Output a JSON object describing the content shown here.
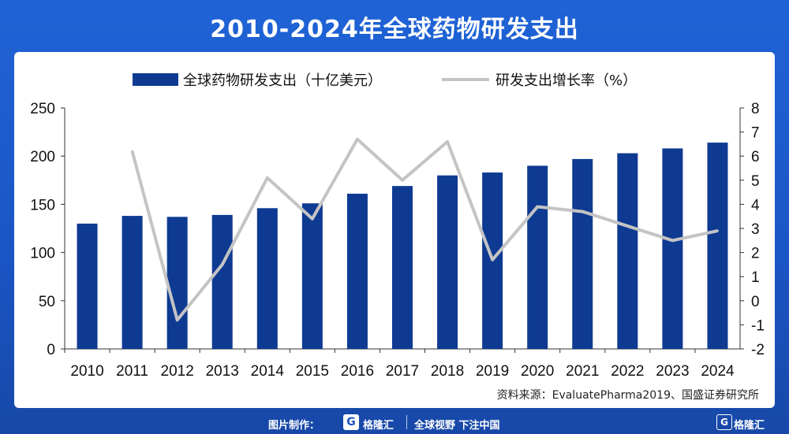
{
  "title": "2010-2024年全球药物研发支出",
  "chart_data": {
    "type": "bar",
    "categories": [
      "2010",
      "2011",
      "2012",
      "2013",
      "2014",
      "2015",
      "2016",
      "2017",
      "2018",
      "2019",
      "2020",
      "2021",
      "2022",
      "2023",
      "2024"
    ],
    "series": [
      {
        "name": "全球药物研发支出（十亿美元）",
        "type": "bar",
        "axis": "left",
        "values": [
          130,
          138,
          137,
          139,
          146,
          151,
          161,
          169,
          180,
          183,
          190,
          197,
          203,
          208,
          214
        ]
      },
      {
        "name": "研发支出增长率（%）",
        "type": "line",
        "axis": "right",
        "values": [
          null,
          6.2,
          -0.8,
          1.5,
          5.1,
          3.4,
          6.7,
          5.0,
          6.6,
          1.7,
          3.9,
          3.7,
          3.1,
          2.5,
          2.9
        ]
      }
    ],
    "left_axis": {
      "min": 0,
      "max": 250,
      "ticks": [
        0,
        50,
        100,
        150,
        200,
        250
      ]
    },
    "right_axis": {
      "min": -2,
      "max": 8,
      "ticks": [
        -2,
        -1,
        0,
        1,
        2,
        3,
        4,
        5,
        6,
        7,
        8
      ]
    },
    "legend_position": "top",
    "grid": false,
    "colors": {
      "bar": "#0e3a92",
      "line": "#c4c4c4"
    }
  },
  "source": "资料来源：EvaluatePharma2019、国盛证券研究所",
  "footer": {
    "made_by": "图片制作：",
    "brand": "格隆汇",
    "slogan": "全球视野 下注中国",
    "brand_right": "格隆汇"
  }
}
